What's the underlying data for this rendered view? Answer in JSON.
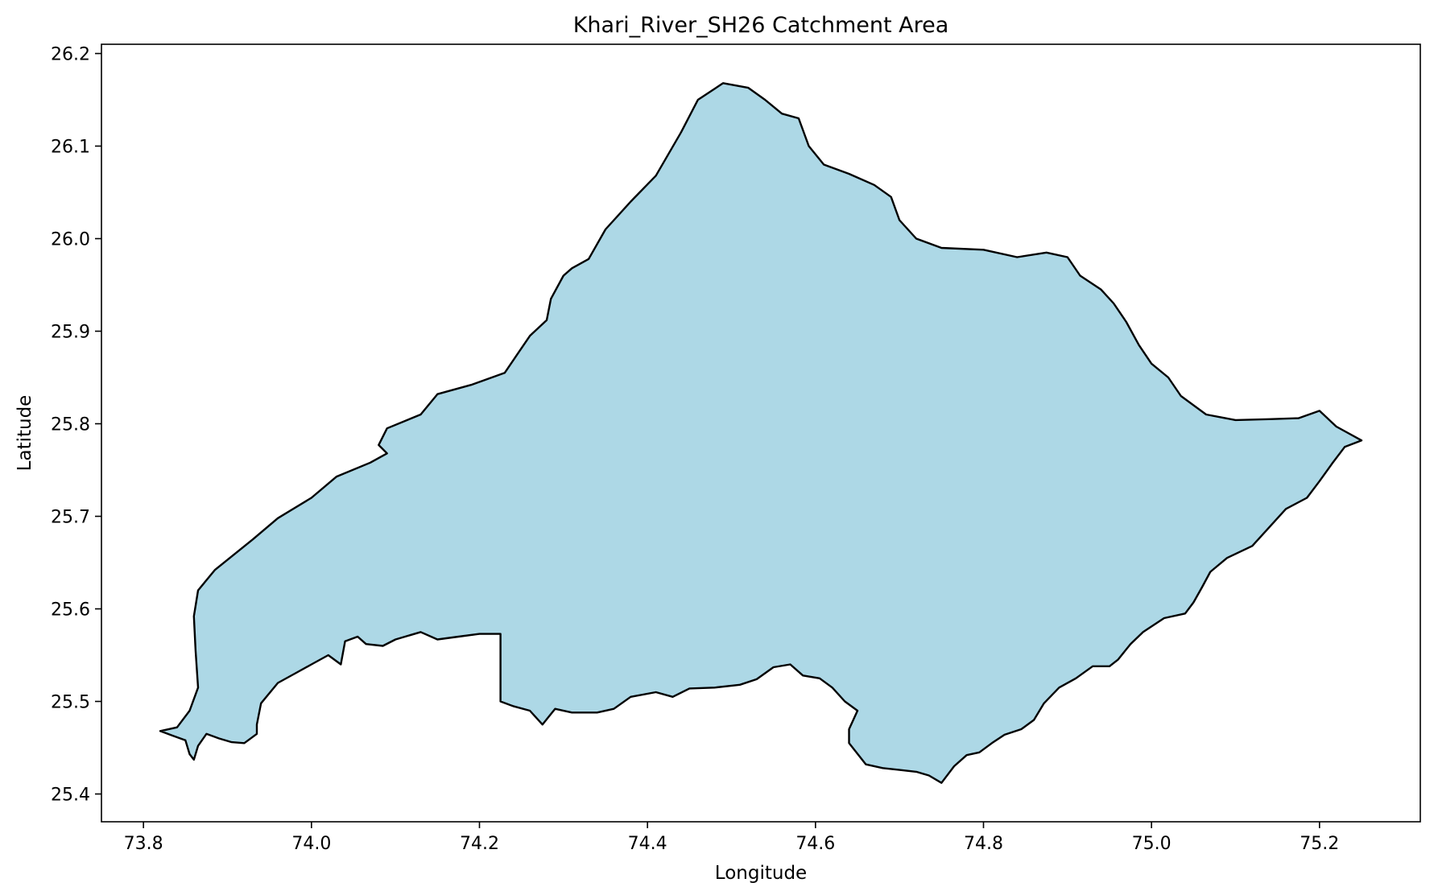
{
  "chart_data": {
    "type": "area",
    "title": "Khari_River_SH26 Catchment Area",
    "xlabel": "Longitude",
    "ylabel": "Latitude",
    "xlim": [
      73.75,
      75.32
    ],
    "ylim": [
      25.37,
      26.21
    ],
    "xticks": [
      73.8,
      74.0,
      74.2,
      74.4,
      74.6,
      74.8,
      75.0,
      75.2
    ],
    "xtick_labels": [
      "73.8",
      "74.0",
      "74.2",
      "74.4",
      "74.6",
      "74.8",
      "75.0",
      "75.2"
    ],
    "yticks": [
      25.4,
      25.5,
      25.6,
      25.7,
      25.8,
      25.9,
      26.0,
      26.1,
      26.2
    ],
    "ytick_labels": [
      "25.4",
      "25.5",
      "25.6",
      "25.7",
      "25.8",
      "25.9",
      "26.0",
      "26.1",
      "26.2"
    ],
    "grid": false,
    "fill_color": "#add8e6",
    "edge_color": "#000000",
    "polygon": [
      [
        73.82,
        25.468
      ],
      [
        73.84,
        25.472
      ],
      [
        73.855,
        25.49
      ],
      [
        73.865,
        25.515
      ],
      [
        73.862,
        25.555
      ],
      [
        73.86,
        25.592
      ],
      [
        73.865,
        25.62
      ],
      [
        73.885,
        25.642
      ],
      [
        73.93,
        25.675
      ],
      [
        73.96,
        25.698
      ],
      [
        74.0,
        25.72
      ],
      [
        74.03,
        25.743
      ],
      [
        74.07,
        25.758
      ],
      [
        74.09,
        25.768
      ],
      [
        74.08,
        25.777
      ],
      [
        74.09,
        25.795
      ],
      [
        74.13,
        25.81
      ],
      [
        74.15,
        25.832
      ],
      [
        74.19,
        25.842
      ],
      [
        74.23,
        25.855
      ],
      [
        74.245,
        25.875
      ],
      [
        74.26,
        25.895
      ],
      [
        74.28,
        25.912
      ],
      [
        74.285,
        25.935
      ],
      [
        74.3,
        25.96
      ],
      [
        74.31,
        25.968
      ],
      [
        74.33,
        25.978
      ],
      [
        74.35,
        26.01
      ],
      [
        74.38,
        26.04
      ],
      [
        74.41,
        26.068
      ],
      [
        74.44,
        26.115
      ],
      [
        74.46,
        26.15
      ],
      [
        74.49,
        26.168
      ],
      [
        74.52,
        26.163
      ],
      [
        74.54,
        26.15
      ],
      [
        74.56,
        26.135
      ],
      [
        74.58,
        26.13
      ],
      [
        74.592,
        26.1
      ],
      [
        74.61,
        26.08
      ],
      [
        74.64,
        26.07
      ],
      [
        74.67,
        26.058
      ],
      [
        74.69,
        26.045
      ],
      [
        74.7,
        26.02
      ],
      [
        74.72,
        26.0
      ],
      [
        74.75,
        25.99
      ],
      [
        74.8,
        25.988
      ],
      [
        74.84,
        25.98
      ],
      [
        74.875,
        25.985
      ],
      [
        74.9,
        25.98
      ],
      [
        74.915,
        25.96
      ],
      [
        74.94,
        25.945
      ],
      [
        74.955,
        25.93
      ],
      [
        74.97,
        25.91
      ],
      [
        74.985,
        25.885
      ],
      [
        75.0,
        25.865
      ],
      [
        75.02,
        25.85
      ],
      [
        75.035,
        25.83
      ],
      [
        75.065,
        25.81
      ],
      [
        75.1,
        25.804
      ],
      [
        75.14,
        25.805
      ],
      [
        75.175,
        25.806
      ],
      [
        75.2,
        25.814
      ],
      [
        75.22,
        25.797
      ],
      [
        75.25,
        25.782
      ],
      [
        75.23,
        25.775
      ],
      [
        75.215,
        25.757
      ],
      [
        75.2,
        25.738
      ],
      [
        75.185,
        25.72
      ],
      [
        75.16,
        25.708
      ],
      [
        75.14,
        25.688
      ],
      [
        75.12,
        25.668
      ],
      [
        75.09,
        25.655
      ],
      [
        75.07,
        25.64
      ],
      [
        75.06,
        25.623
      ],
      [
        75.05,
        25.607
      ],
      [
        75.04,
        25.595
      ],
      [
        75.015,
        25.59
      ],
      [
        74.99,
        25.575
      ],
      [
        74.975,
        25.562
      ],
      [
        74.96,
        25.545
      ],
      [
        74.95,
        25.538
      ],
      [
        74.93,
        25.538
      ],
      [
        74.91,
        25.525
      ],
      [
        74.89,
        25.515
      ],
      [
        74.872,
        25.498
      ],
      [
        74.86,
        25.48
      ],
      [
        74.845,
        25.47
      ],
      [
        74.825,
        25.464
      ],
      [
        74.81,
        25.455
      ],
      [
        74.795,
        25.445
      ],
      [
        74.78,
        25.442
      ],
      [
        74.765,
        25.43
      ],
      [
        74.75,
        25.412
      ],
      [
        74.735,
        25.42
      ],
      [
        74.72,
        25.424
      ],
      [
        74.7,
        25.426
      ],
      [
        74.68,
        25.428
      ],
      [
        74.66,
        25.432
      ],
      [
        74.64,
        25.455
      ],
      [
        74.64,
        25.47
      ],
      [
        74.65,
        25.49
      ],
      [
        74.635,
        25.5
      ],
      [
        74.62,
        25.515
      ],
      [
        74.605,
        25.525
      ],
      [
        74.585,
        25.528
      ],
      [
        74.57,
        25.54
      ],
      [
        74.55,
        25.537
      ],
      [
        74.53,
        25.524
      ],
      [
        74.51,
        25.518
      ],
      [
        74.48,
        25.515
      ],
      [
        74.45,
        25.514
      ],
      [
        74.43,
        25.505
      ],
      [
        74.41,
        25.51
      ],
      [
        74.38,
        25.505
      ],
      [
        74.36,
        25.492
      ],
      [
        74.34,
        25.488
      ],
      [
        74.31,
        25.488
      ],
      [
        74.29,
        25.492
      ],
      [
        74.275,
        25.475
      ],
      [
        74.26,
        25.49
      ],
      [
        74.24,
        25.495
      ],
      [
        74.225,
        25.5
      ],
      [
        74.225,
        25.55
      ],
      [
        74.225,
        25.573
      ],
      [
        74.2,
        25.573
      ],
      [
        74.175,
        25.57
      ],
      [
        74.15,
        25.567
      ],
      [
        74.13,
        25.575
      ],
      [
        74.1,
        25.567
      ],
      [
        74.085,
        25.56
      ],
      [
        74.065,
        25.562
      ],
      [
        74.055,
        25.57
      ],
      [
        74.04,
        25.565
      ],
      [
        74.035,
        25.54
      ],
      [
        74.02,
        25.55
      ],
      [
        74.0,
        25.54
      ],
      [
        73.98,
        25.53
      ],
      [
        73.96,
        25.52
      ],
      [
        73.94,
        25.498
      ],
      [
        73.935,
        25.475
      ],
      [
        73.935,
        25.465
      ],
      [
        73.92,
        25.455
      ],
      [
        73.905,
        25.456
      ],
      [
        73.89,
        25.46
      ],
      [
        73.875,
        25.465
      ],
      [
        73.865,
        25.452
      ],
      [
        73.86,
        25.437
      ],
      [
        73.855,
        25.443
      ],
      [
        73.85,
        25.458
      ],
      [
        73.835,
        25.463
      ],
      [
        73.82,
        25.468
      ]
    ]
  }
}
